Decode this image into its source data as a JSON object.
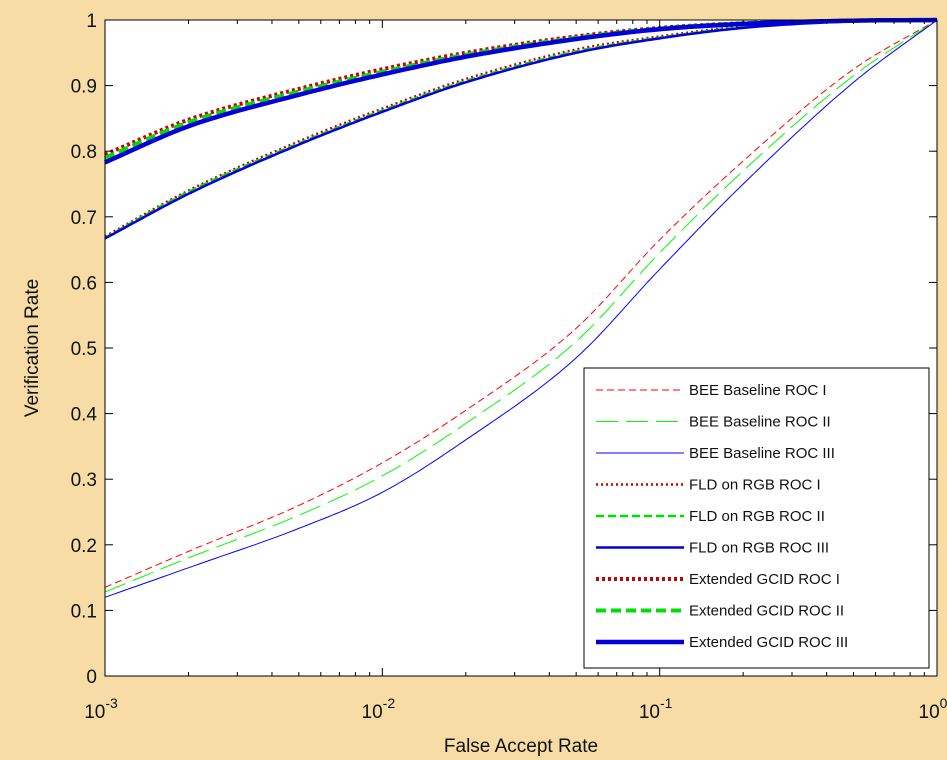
{
  "chart_data": {
    "type": "line",
    "title": "",
    "xlabel": "False Accept Rate",
    "ylabel": "Verification Rate",
    "xscale": "log",
    "xlim": [
      0.001,
      1
    ],
    "ylim": [
      0,
      1
    ],
    "x_ticks": [
      {
        "value": 0.001,
        "base": "10",
        "exp": "-3"
      },
      {
        "value": 0.01,
        "base": "10",
        "exp": "-2"
      },
      {
        "value": 0.1,
        "base": "10",
        "exp": "-1"
      },
      {
        "value": 1,
        "base": "10",
        "exp": "0"
      }
    ],
    "y_ticks": [
      "0",
      "0.1",
      "0.2",
      "0.3",
      "0.4",
      "0.5",
      "0.6",
      "0.7",
      "0.8",
      "0.9",
      "1"
    ],
    "grid": false,
    "legend_position": "bottom-right",
    "x": [
      0.001,
      0.002,
      0.005,
      0.01,
      0.02,
      0.05,
      0.1,
      0.2,
      0.5,
      1
    ],
    "series": [
      {
        "name": "BEE Baseline ROC I",
        "color": "#FF0000",
        "style": "dashed-thin",
        "values": [
          0.135,
          0.19,
          0.26,
          0.325,
          0.405,
          0.53,
          0.665,
          0.785,
          0.925,
          1.0
        ]
      },
      {
        "name": "BEE Baseline ROC II",
        "color": "#00FF00",
        "style": "longdash-thin",
        "values": [
          0.128,
          0.18,
          0.245,
          0.305,
          0.385,
          0.51,
          0.645,
          0.77,
          0.915,
          1.0
        ]
      },
      {
        "name": "BEE Baseline ROC III",
        "color": "#0000FF",
        "style": "solid-thin",
        "values": [
          0.12,
          0.165,
          0.225,
          0.28,
          0.36,
          0.485,
          0.62,
          0.75,
          0.905,
          1.0
        ]
      },
      {
        "name": "FLD on RGB ROC I",
        "color": "#CC0000",
        "style": "dotted",
        "values": [
          0.67,
          0.74,
          0.815,
          0.865,
          0.91,
          0.955,
          0.975,
          0.99,
          0.998,
          1.0
        ]
      },
      {
        "name": "FLD on RGB ROC II",
        "color": "#00DD00",
        "style": "dashed",
        "values": [
          0.668,
          0.738,
          0.812,
          0.862,
          0.907,
          0.952,
          0.973,
          0.989,
          0.998,
          1.0
        ]
      },
      {
        "name": "FLD on RGB ROC III",
        "color": "#0000DD",
        "style": "solid",
        "values": [
          0.667,
          0.735,
          0.81,
          0.86,
          0.905,
          0.95,
          0.972,
          0.988,
          0.998,
          1.0
        ]
      },
      {
        "name": "Extended GCID ROC I",
        "color": "#CC0000",
        "style": "dotted-thick",
        "values": [
          0.795,
          0.848,
          0.895,
          0.925,
          0.95,
          0.975,
          0.988,
          0.995,
          0.999,
          1.0
        ]
      },
      {
        "name": "Extended GCID ROC II",
        "color": "#00DD00",
        "style": "dashed-thick",
        "values": [
          0.79,
          0.844,
          0.891,
          0.921,
          0.947,
          0.973,
          0.987,
          0.995,
          0.999,
          1.0
        ]
      },
      {
        "name": "Extended GCID ROC III",
        "color": "#0000DD",
        "style": "solid-thick",
        "values": [
          0.783,
          0.838,
          0.886,
          0.917,
          0.944,
          0.971,
          0.986,
          0.994,
          0.999,
          1.0
        ]
      }
    ]
  }
}
